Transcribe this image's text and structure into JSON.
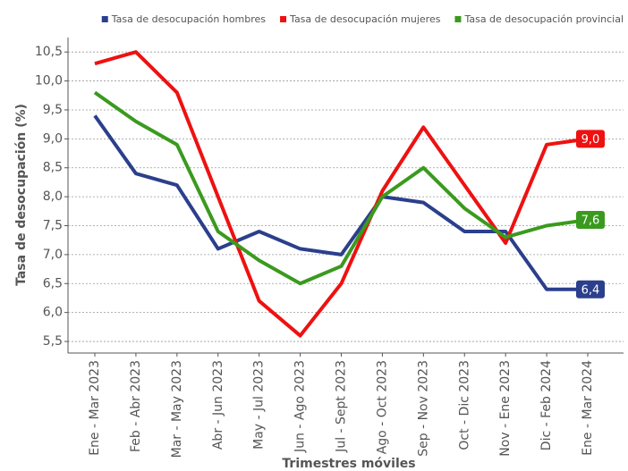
{
  "chart_data": {
    "type": "line",
    "x_label": "Trimestres móviles",
    "y_label": "Tasa de desocupación (%)",
    "categories": [
      "Ene - Mar 2023",
      "Feb - Abr 2023",
      "Mar - May 2023",
      "Abr - Jun 2023",
      "May - Jul 2023",
      "Jun - Ago 2023",
      "Jul - Sept 2023",
      "Ago - Oct 2023",
      "Sep - Nov 2023",
      "Oct - Dic 2023",
      "Nov - Ene 2023",
      "Dic - Feb 2024",
      "Ene - Mar 2024"
    ],
    "series": [
      {
        "name": "Tasa de desocupación hombres",
        "color": "#2b3f8c",
        "values": [
          9.4,
          8.4,
          8.2,
          7.1,
          7.4,
          7.1,
          7.0,
          8.0,
          7.9,
          7.4,
          7.4,
          6.4,
          6.4
        ],
        "value_labels": [
          null,
          null,
          null,
          null,
          null,
          null,
          null,
          null,
          null,
          null,
          null,
          null,
          "6,4"
        ]
      },
      {
        "name": "Tasa de desocupación mujeres",
        "color": "#ee1111",
        "values": [
          10.3,
          10.5,
          9.8,
          8.0,
          6.2,
          5.6,
          6.5,
          8.1,
          9.2,
          8.2,
          7.2,
          8.9,
          9.0
        ],
        "value_labels": [
          null,
          null,
          null,
          null,
          null,
          null,
          null,
          null,
          null,
          null,
          null,
          null,
          "9,0"
        ]
      },
      {
        "name": "Tasa de desocupación provincial",
        "color": "#3a9a1e",
        "values": [
          9.8,
          9.3,
          8.9,
          7.4,
          6.9,
          6.5,
          6.8,
          8.0,
          8.5,
          7.8,
          7.3,
          7.5,
          7.6
        ],
        "value_labels": [
          null,
          null,
          null,
          null,
          null,
          null,
          null,
          null,
          null,
          null,
          null,
          null,
          "7,6"
        ]
      }
    ],
    "ylim": [
      5.3,
      10.75
    ],
    "yticks": [
      {
        "value": 5.5,
        "label": "5,5"
      },
      {
        "value": 6.0,
        "label": "6,0"
      },
      {
        "value": 6.5,
        "label": "6,5"
      },
      {
        "value": 7.0,
        "label": "7,0"
      },
      {
        "value": 7.5,
        "label": "7,5"
      },
      {
        "value": 8.0,
        "label": "8,0"
      },
      {
        "value": 8.5,
        "label": "8,5"
      },
      {
        "value": 9.0,
        "label": "9,0"
      },
      {
        "value": 9.5,
        "label": "9,5"
      },
      {
        "value": 10.0,
        "label": "10,0"
      },
      {
        "value": 10.5,
        "label": "10,5"
      }
    ],
    "grid": true,
    "legend": "top-right"
  }
}
